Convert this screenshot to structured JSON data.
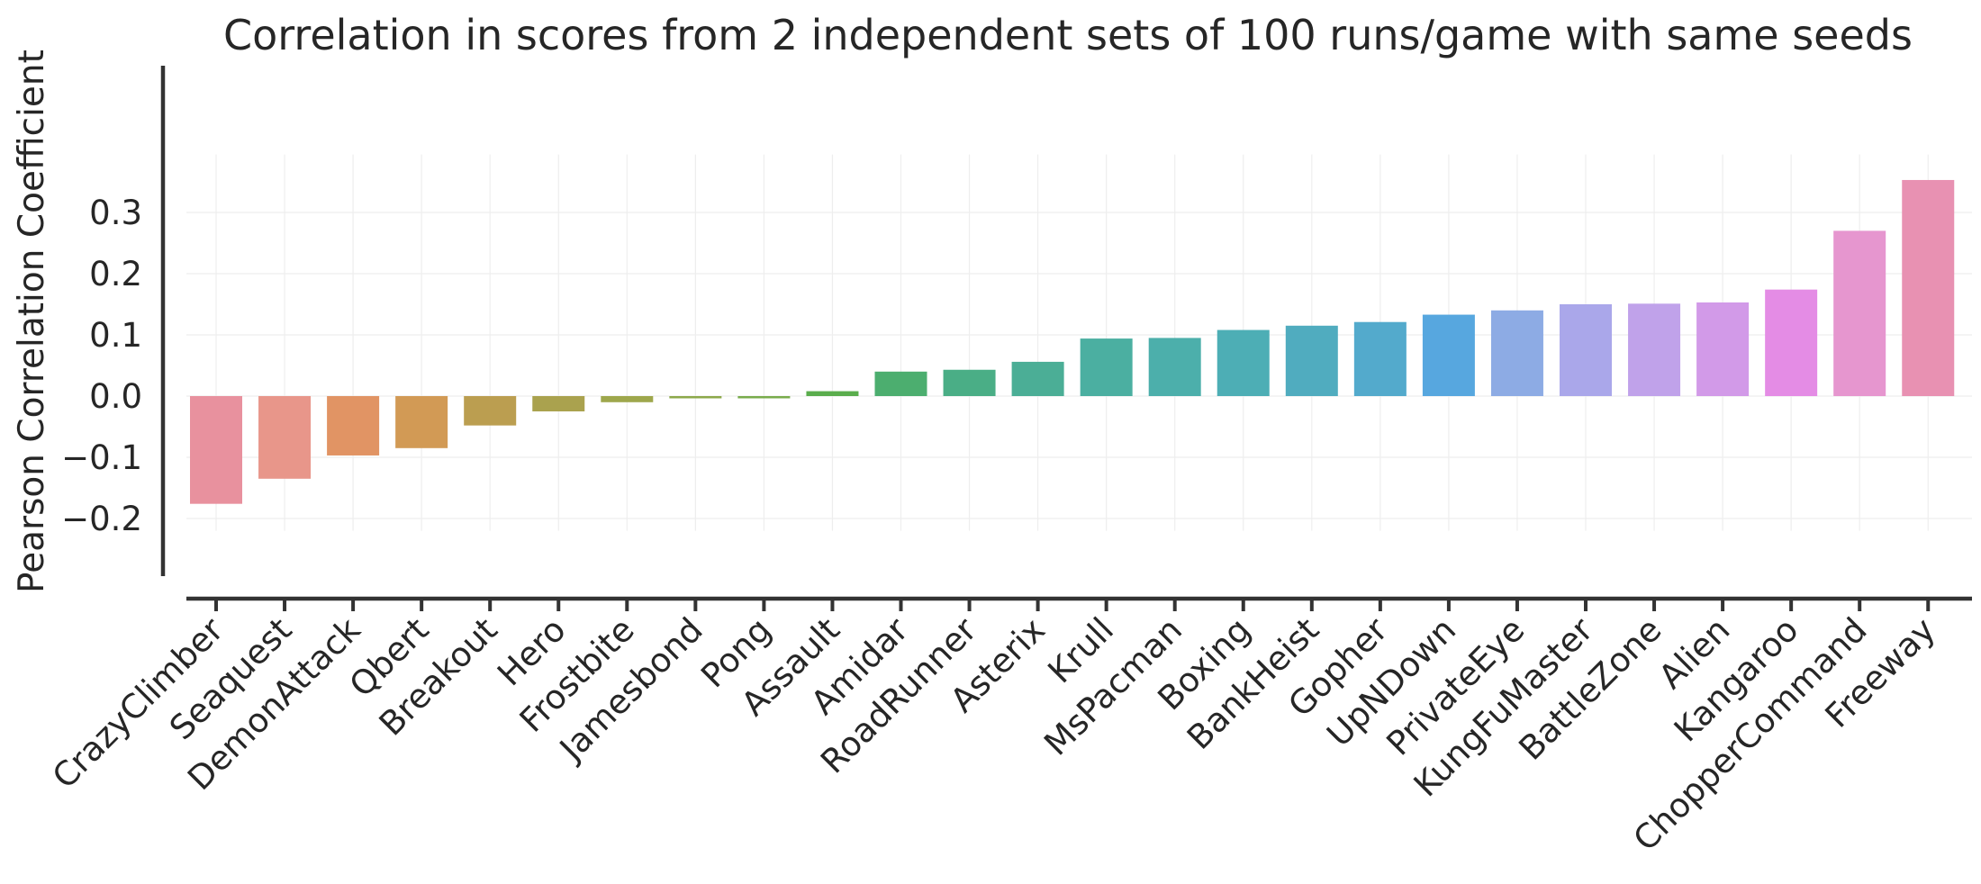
{
  "chart_data": {
    "type": "bar",
    "title": "Correlation in scores from 2 independent sets of 100 runs/game with same seeds",
    "xlabel": "",
    "ylabel": "Pearson Correlation Coefficient",
    "ylim": [
      -0.22,
      0.38
    ],
    "yticks": [
      -0.2,
      -0.1,
      0.0,
      0.1,
      0.2,
      0.3
    ],
    "ytick_labels": [
      "−0.2",
      "−0.1",
      "0.0",
      "0.1",
      "0.2",
      "0.3"
    ],
    "grid": true,
    "categories": [
      "CrazyClimber",
      "Seaquest",
      "DemonAttack",
      "Qbert",
      "Breakout",
      "Hero",
      "Frostbite",
      "Jamesbond",
      "Pong",
      "Assault",
      "Amidar",
      "RoadRunner",
      "Asterix",
      "Krull",
      "MsPacman",
      "Boxing",
      "BankHeist",
      "Gopher",
      "UpNDown",
      "PrivateEye",
      "KungFuMaster",
      "BattleZone",
      "Alien",
      "Kangaroo",
      "ChopperCommand",
      "Freeway"
    ],
    "values": [
      -0.176,
      -0.135,
      -0.097,
      -0.085,
      -0.048,
      -0.025,
      -0.01,
      -0.003,
      -0.002,
      0.008,
      0.04,
      0.043,
      0.056,
      0.094,
      0.095,
      0.108,
      0.115,
      0.121,
      0.133,
      0.14,
      0.15,
      0.151,
      0.153,
      0.174,
      0.27,
      0.353
    ],
    "colors": [
      "#e8919e",
      "#e8968a",
      "#e19464",
      "#d29a55",
      "#bb9e50",
      "#aaa24e",
      "#9ea74c",
      "#8da94b",
      "#79ac4c",
      "#5aad4d",
      "#4cae6f",
      "#4aae86",
      "#4bae96",
      "#4bafa1",
      "#4cafab",
      "#4daeb5",
      "#50acbf",
      "#53aacc",
      "#57a7df",
      "#8dabe4",
      "#aaa7ea",
      "#c0a2ea",
      "#d29ae8",
      "#e48ce5",
      "#e696cf",
      "#e891b2"
    ]
  }
}
